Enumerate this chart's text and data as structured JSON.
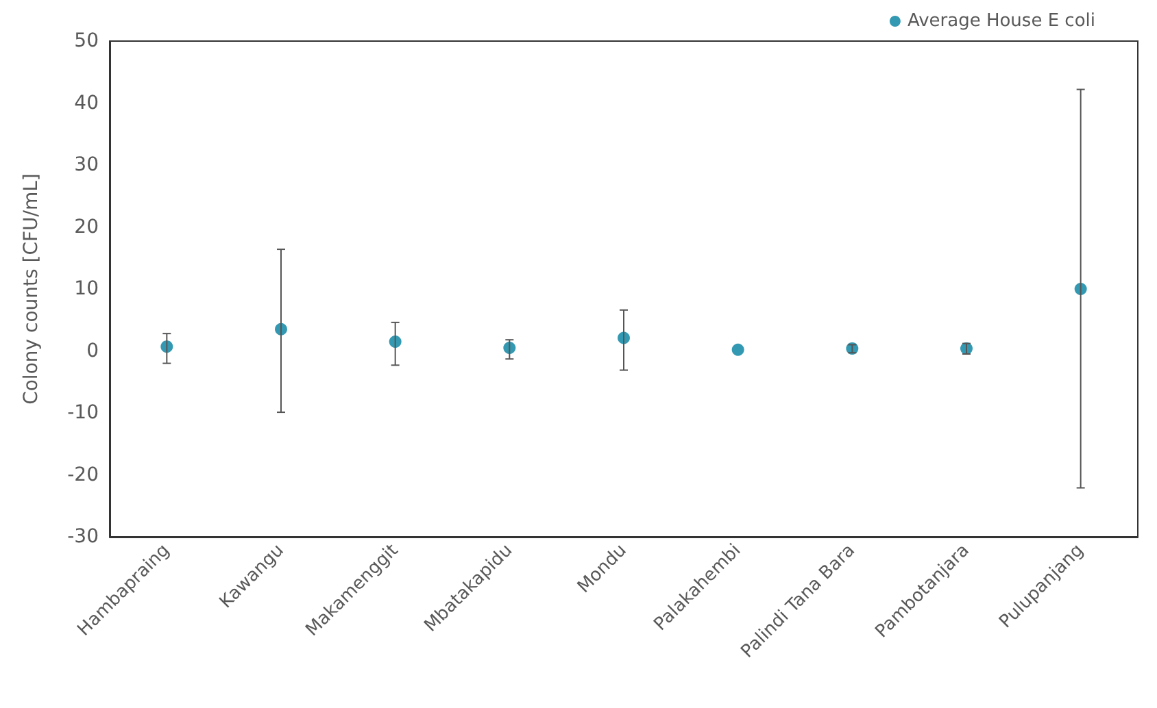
{
  "chart_data": {
    "type": "scatter",
    "ylabel": "Colony counts [CFU/mL]",
    "categories": [
      "Hambapraing",
      "Kawangu",
      "Makamenggit",
      "Mbatakapidu",
      "Mondu",
      "Palakahembi",
      "Palindi Tana Bara",
      "Pambotanjara",
      "Pulupanjang"
    ],
    "series": [
      {
        "name": "Average House E coli",
        "color": "#00809f",
        "values": [
          0.7,
          3.5,
          1.5,
          0.5,
          2.1,
          0.2,
          0.4,
          0.4,
          10.0
        ],
        "errors": [
          [
            -2.0,
            2.8
          ],
          [
            -9.9,
            16.4
          ],
          [
            -2.3,
            4.6
          ],
          [
            -1.3,
            1.8
          ],
          [
            -3.1,
            6.6
          ],
          null,
          [
            -0.3,
            1.0
          ],
          [
            -0.5,
            1.2
          ],
          [
            -22.1,
            42.2
          ]
        ]
      }
    ],
    "ylim": [
      -30,
      50
    ],
    "yticks": [
      -30,
      -20,
      -10,
      0,
      10,
      20,
      30,
      40,
      50
    ],
    "grid": false,
    "legend": "top right",
    "marker": "circle"
  }
}
